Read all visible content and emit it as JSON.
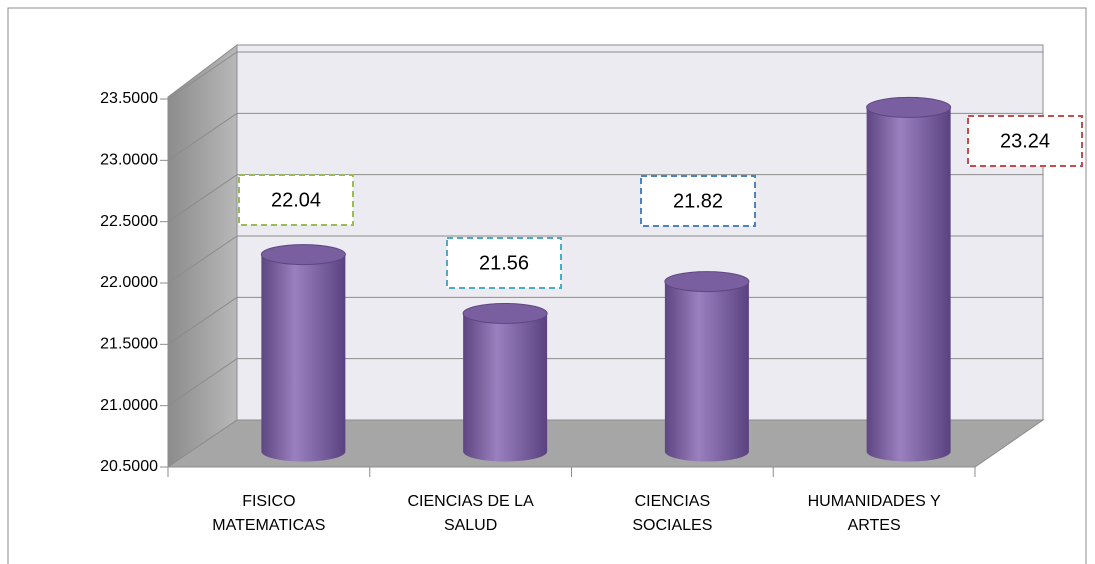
{
  "chart_data": {
    "type": "bar",
    "categories": [
      "FISICO MATEMATICAS",
      "CIENCIAS DE LA SALUD",
      "CIENCIAS SOCIALES",
      "HUMANIDADES Y ARTES"
    ],
    "values": [
      22.04,
      21.56,
      21.82,
      23.24
    ],
    "value_labels": [
      "22.04",
      "21.56",
      "21.82",
      "23.24"
    ],
    "color": "#8064a2",
    "label_colors": [
      "#9bbb59",
      "#4bacc6",
      "#4f81bd",
      "#c0504d"
    ],
    "ylim": [
      20.5,
      23.5
    ],
    "yticks": [
      {
        "value": 20.5,
        "label": "20.5000"
      },
      {
        "value": 21,
        "label": "21.0000"
      },
      {
        "value": 21.5,
        "label": "21.5000"
      },
      {
        "value": 22,
        "label": "22.0000"
      },
      {
        "value": 22.5,
        "label": "22.5000"
      },
      {
        "value": 23,
        "label": "23.0000"
      },
      {
        "value": 23.5,
        "label": "23.5000"
      }
    ],
    "grid": true
  }
}
